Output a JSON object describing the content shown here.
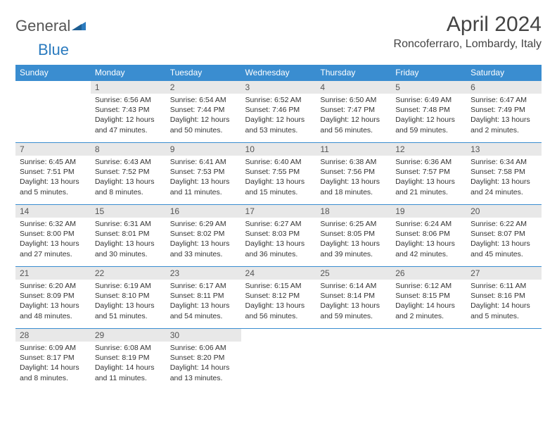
{
  "logo": {
    "general": "General",
    "blue": "Blue"
  },
  "header": {
    "title": "April 2024",
    "location": "Roncoferraro, Lombardy, Italy"
  },
  "colors": {
    "header_bg": "#3a8dd0",
    "header_text": "#ffffff",
    "daynum_bg": "#e8e8e8",
    "border": "#3a8dd0",
    "logo_blue": "#2b7bbf"
  },
  "weekdays": [
    "Sunday",
    "Monday",
    "Tuesday",
    "Wednesday",
    "Thursday",
    "Friday",
    "Saturday"
  ],
  "weeks": [
    [
      {
        "blank": true
      },
      {
        "n": "1",
        "sr": "Sunrise: 6:56 AM",
        "ss": "Sunset: 7:43 PM",
        "d1": "Daylight: 12 hours",
        "d2": "and 47 minutes."
      },
      {
        "n": "2",
        "sr": "Sunrise: 6:54 AM",
        "ss": "Sunset: 7:44 PM",
        "d1": "Daylight: 12 hours",
        "d2": "and 50 minutes."
      },
      {
        "n": "3",
        "sr": "Sunrise: 6:52 AM",
        "ss": "Sunset: 7:46 PM",
        "d1": "Daylight: 12 hours",
        "d2": "and 53 minutes."
      },
      {
        "n": "4",
        "sr": "Sunrise: 6:50 AM",
        "ss": "Sunset: 7:47 PM",
        "d1": "Daylight: 12 hours",
        "d2": "and 56 minutes."
      },
      {
        "n": "5",
        "sr": "Sunrise: 6:49 AM",
        "ss": "Sunset: 7:48 PM",
        "d1": "Daylight: 12 hours",
        "d2": "and 59 minutes."
      },
      {
        "n": "6",
        "sr": "Sunrise: 6:47 AM",
        "ss": "Sunset: 7:49 PM",
        "d1": "Daylight: 13 hours",
        "d2": "and 2 minutes."
      }
    ],
    [
      {
        "n": "7",
        "sr": "Sunrise: 6:45 AM",
        "ss": "Sunset: 7:51 PM",
        "d1": "Daylight: 13 hours",
        "d2": "and 5 minutes."
      },
      {
        "n": "8",
        "sr": "Sunrise: 6:43 AM",
        "ss": "Sunset: 7:52 PM",
        "d1": "Daylight: 13 hours",
        "d2": "and 8 minutes."
      },
      {
        "n": "9",
        "sr": "Sunrise: 6:41 AM",
        "ss": "Sunset: 7:53 PM",
        "d1": "Daylight: 13 hours",
        "d2": "and 11 minutes."
      },
      {
        "n": "10",
        "sr": "Sunrise: 6:40 AM",
        "ss": "Sunset: 7:55 PM",
        "d1": "Daylight: 13 hours",
        "d2": "and 15 minutes."
      },
      {
        "n": "11",
        "sr": "Sunrise: 6:38 AM",
        "ss": "Sunset: 7:56 PM",
        "d1": "Daylight: 13 hours",
        "d2": "and 18 minutes."
      },
      {
        "n": "12",
        "sr": "Sunrise: 6:36 AM",
        "ss": "Sunset: 7:57 PM",
        "d1": "Daylight: 13 hours",
        "d2": "and 21 minutes."
      },
      {
        "n": "13",
        "sr": "Sunrise: 6:34 AM",
        "ss": "Sunset: 7:58 PM",
        "d1": "Daylight: 13 hours",
        "d2": "and 24 minutes."
      }
    ],
    [
      {
        "n": "14",
        "sr": "Sunrise: 6:32 AM",
        "ss": "Sunset: 8:00 PM",
        "d1": "Daylight: 13 hours",
        "d2": "and 27 minutes."
      },
      {
        "n": "15",
        "sr": "Sunrise: 6:31 AM",
        "ss": "Sunset: 8:01 PM",
        "d1": "Daylight: 13 hours",
        "d2": "and 30 minutes."
      },
      {
        "n": "16",
        "sr": "Sunrise: 6:29 AM",
        "ss": "Sunset: 8:02 PM",
        "d1": "Daylight: 13 hours",
        "d2": "and 33 minutes."
      },
      {
        "n": "17",
        "sr": "Sunrise: 6:27 AM",
        "ss": "Sunset: 8:03 PM",
        "d1": "Daylight: 13 hours",
        "d2": "and 36 minutes."
      },
      {
        "n": "18",
        "sr": "Sunrise: 6:25 AM",
        "ss": "Sunset: 8:05 PM",
        "d1": "Daylight: 13 hours",
        "d2": "and 39 minutes."
      },
      {
        "n": "19",
        "sr": "Sunrise: 6:24 AM",
        "ss": "Sunset: 8:06 PM",
        "d1": "Daylight: 13 hours",
        "d2": "and 42 minutes."
      },
      {
        "n": "20",
        "sr": "Sunrise: 6:22 AM",
        "ss": "Sunset: 8:07 PM",
        "d1": "Daylight: 13 hours",
        "d2": "and 45 minutes."
      }
    ],
    [
      {
        "n": "21",
        "sr": "Sunrise: 6:20 AM",
        "ss": "Sunset: 8:09 PM",
        "d1": "Daylight: 13 hours",
        "d2": "and 48 minutes."
      },
      {
        "n": "22",
        "sr": "Sunrise: 6:19 AM",
        "ss": "Sunset: 8:10 PM",
        "d1": "Daylight: 13 hours",
        "d2": "and 51 minutes."
      },
      {
        "n": "23",
        "sr": "Sunrise: 6:17 AM",
        "ss": "Sunset: 8:11 PM",
        "d1": "Daylight: 13 hours",
        "d2": "and 54 minutes."
      },
      {
        "n": "24",
        "sr": "Sunrise: 6:15 AM",
        "ss": "Sunset: 8:12 PM",
        "d1": "Daylight: 13 hours",
        "d2": "and 56 minutes."
      },
      {
        "n": "25",
        "sr": "Sunrise: 6:14 AM",
        "ss": "Sunset: 8:14 PM",
        "d1": "Daylight: 13 hours",
        "d2": "and 59 minutes."
      },
      {
        "n": "26",
        "sr": "Sunrise: 6:12 AM",
        "ss": "Sunset: 8:15 PM",
        "d1": "Daylight: 14 hours",
        "d2": "and 2 minutes."
      },
      {
        "n": "27",
        "sr": "Sunrise: 6:11 AM",
        "ss": "Sunset: 8:16 PM",
        "d1": "Daylight: 14 hours",
        "d2": "and 5 minutes."
      }
    ],
    [
      {
        "n": "28",
        "sr": "Sunrise: 6:09 AM",
        "ss": "Sunset: 8:17 PM",
        "d1": "Daylight: 14 hours",
        "d2": "and 8 minutes."
      },
      {
        "n": "29",
        "sr": "Sunrise: 6:08 AM",
        "ss": "Sunset: 8:19 PM",
        "d1": "Daylight: 14 hours",
        "d2": "and 11 minutes."
      },
      {
        "n": "30",
        "sr": "Sunrise: 6:06 AM",
        "ss": "Sunset: 8:20 PM",
        "d1": "Daylight: 14 hours",
        "d2": "and 13 minutes."
      },
      {
        "blank": true
      },
      {
        "blank": true
      },
      {
        "blank": true
      },
      {
        "blank": true
      }
    ]
  ]
}
